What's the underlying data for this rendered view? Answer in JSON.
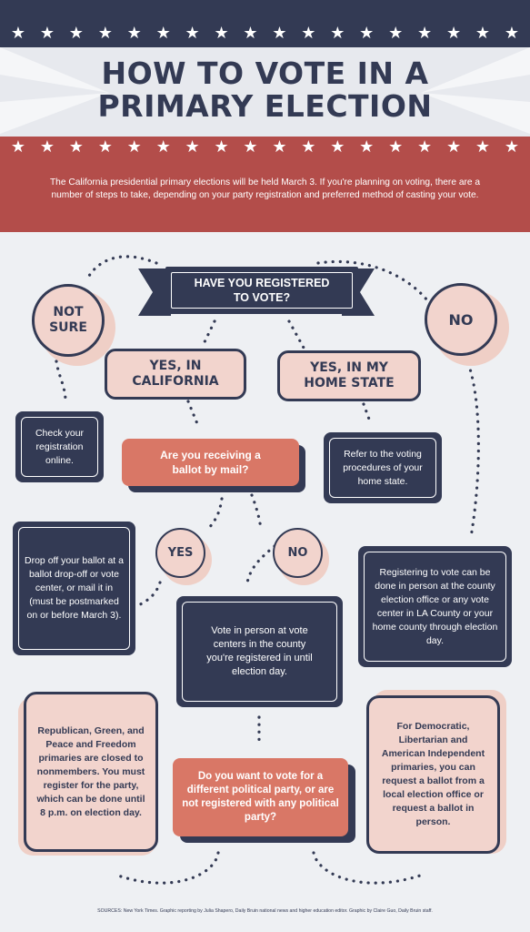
{
  "header": {
    "title_line1": "HOW TO VOTE IN A",
    "title_line2": "PRIMARY ELECTION",
    "intro": "The California presidential primary elections will be held March 3. If you're planning on voting, there are a number of steps to take, depending on your party registration and preferred method of casting your vote.",
    "star": "★"
  },
  "colors": {
    "navy": "#333a54",
    "red": "#b34d4a",
    "pink": "#f2d4cd",
    "salmon": "#d97766",
    "background": "#eef0f3"
  },
  "flow": {
    "question1_line1": "HAVE YOU REGISTERED",
    "question1_line2": "TO VOTE?",
    "not_sure_line1": "NOT",
    "not_sure_line2": "SURE",
    "no": "NO",
    "yes_ca_line1": "YES, IN",
    "yes_ca_line2": "CALIFORNIA",
    "yes_home_line1": "YES, IN MY",
    "yes_home_line2": "HOME STATE",
    "check_registration": "Check your registration online.",
    "question2_line1": "Are you receiving a",
    "question2_line2": "ballot by mail?",
    "refer_home": "Refer to the voting procedures of your home state.",
    "yes": "YES",
    "no2": "NO",
    "drop_off": "Drop off your ballot at a ballot drop-off or vote center, or mail it in (must be postmarked on or before March 3).",
    "register_info": "Registering to vote can be done in person at the county election office or any vote center in LA County or your home county through election day.",
    "vote_in_person": "Vote in person at vote centers in the county you're registered in until election day.",
    "closed_primaries": "Republican, Green, and Peace and Freedom primaries are closed to nonmembers. You must register for the party, which can be done until 8 p.m. on election day.",
    "question3": "Do you want to vote for a different political party, or are not registered with any political party?",
    "open_primaries": "For Democratic, Libertarian and American Independent primaries, you can request a ballot from a local election office or request a ballot in person."
  },
  "sources": "SOURCES: New York Times. Graphic reporting by Julia Shapero, Daily Bruin national news and higher education editor. Graphic by Claire Guo, Daily Bruin staff."
}
